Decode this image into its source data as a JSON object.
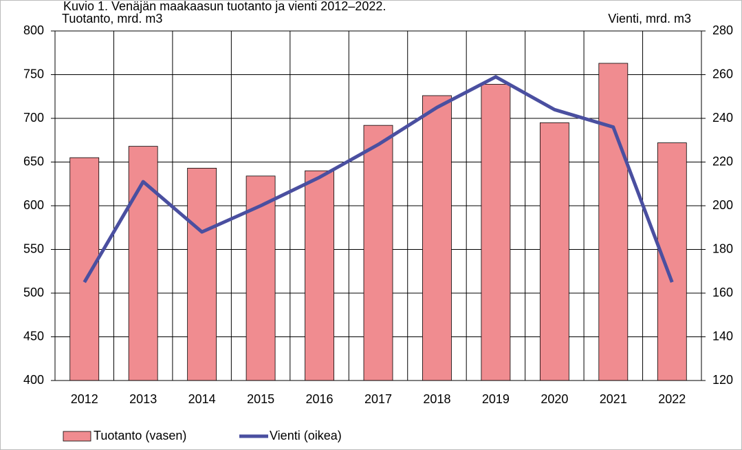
{
  "chart_data": {
    "type": "bar_line",
    "title": "Kuvio 1. Venäjän maakaasun tuotanto ja vienti 2012–2022.",
    "y_label": "Tuotanto, mrd. m3",
    "y2_label": "Vienti, mrd. m3",
    "categories": [
      "2012",
      "2013",
      "2014",
      "2015",
      "2016",
      "2017",
      "2018",
      "2019",
      "2020",
      "2021",
      "2022"
    ],
    "series": [
      {
        "name": "Tuotanto (vasen)",
        "type": "bar",
        "color": "#f08c90",
        "values": [
          655,
          668,
          643,
          634,
          640,
          692,
          726,
          739,
          695,
          763,
          672
        ]
      },
      {
        "name": "Vienti (oikea)",
        "type": "line",
        "axis": "y2",
        "color": "#4a4fa0",
        "values": [
          165,
          211,
          188,
          200,
          213,
          228,
          245,
          259,
          244,
          236,
          165
        ]
      }
    ],
    "ylim": [
      400,
      800
    ],
    "yticks": [
      400,
      450,
      500,
      550,
      600,
      650,
      700,
      750,
      800
    ],
    "y2lim": [
      120,
      280
    ],
    "y2ticks": [
      120,
      140,
      160,
      180,
      200,
      220,
      240,
      260,
      280
    ],
    "grid": true
  }
}
